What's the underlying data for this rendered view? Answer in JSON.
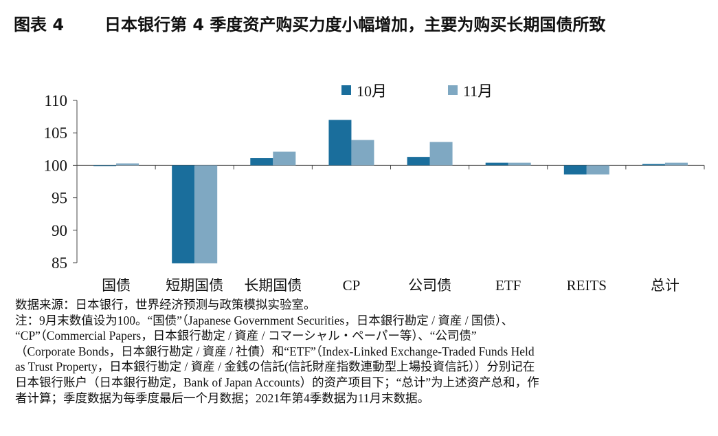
{
  "header": {
    "fig_label": "图表 4",
    "title": "日本银行第 4 季度资产购买力度小幅增加，主要为购买长期国债所致"
  },
  "chart_data": {
    "type": "bar",
    "categories": [
      "国债",
      "短期国债",
      "长期国债",
      "CP",
      "公司债",
      "ETF",
      "REITS",
      "总计"
    ],
    "series": [
      {
        "name": "10月",
        "values": [
          100.0,
          84.9,
          101.1,
          107.0,
          101.3,
          100.4,
          98.6,
          100.2
        ],
        "color": "#1a6e9c"
      },
      {
        "name": "11月",
        "values": [
          100.3,
          84.9,
          102.1,
          103.9,
          103.6,
          100.4,
          98.6,
          100.4
        ],
        "color": "#7fa8c2"
      }
    ],
    "ylim": [
      85,
      110
    ],
    "yticks": [
      85,
      90,
      95,
      100,
      105,
      110
    ],
    "baseline": 100,
    "legend_position": "top"
  },
  "notes": [
    "数据来源：日本银行，世界经济预测与政策模拟实验室。",
    "注：9月末数值设为100。“国债”（Japanese Government Securities，日本銀行勘定 / 資産 / 国债）、",
    "“CP”（Commercial Papers，日本銀行勘定 / 資産 / コマーシャル・ペーパー等）、“公司债”",
    "（Corporate Bonds，日本銀行勘定 / 資産 / 社債）和“ETF”（Index-Linked Exchange-Traded Funds Held",
    "as Trust Property，日本銀行勘定 / 資産 / 金銭の信託(信託財産指数連動型上場投資信託））分别记在",
    "日本银行账户（日本銀行勘定，Bank of Japan Accounts）的资产项目下；“总计”为上述资产总和，作",
    "者计算；季度数据为每季度最后一个月数据；2021年第4季数据为11月末数据。"
  ]
}
